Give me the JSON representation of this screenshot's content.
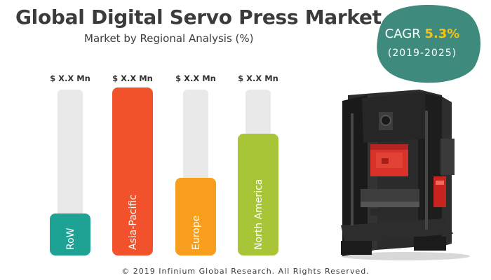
{
  "header": {
    "title": "Global Digital Servo Press Market",
    "subtitle": "Market by Regional Analysis (%)"
  },
  "cagr": {
    "label": "CAGR",
    "value": "5.3%",
    "period": "(2019-2025)",
    "bg_color": "#3e8a7c",
    "value_color": "#f7c214"
  },
  "chart_data": {
    "type": "bar",
    "categories": [
      "RoW",
      "Asia-Pacific",
      "Europe",
      "North America"
    ],
    "values": [
      20,
      80,
      37,
      58
    ],
    "value_labels": [
      "$ X.X Mn",
      "$ X.X Mn",
      "$ X.X Mn",
      "$ X.X Mn"
    ],
    "colors": [
      "#1ea294",
      "#f2522b",
      "#f79f1c",
      "#a8c437"
    ],
    "track_color": "#e9e9e9",
    "ylim": [
      0,
      100
    ],
    "xlabel": "",
    "ylabel": "",
    "grid": false,
    "legend": "none"
  },
  "image": {
    "icon": "servo-press-machine"
  },
  "footer": {
    "copyright": "© 2019 Infinium Global Research. All Rights Reserved."
  }
}
